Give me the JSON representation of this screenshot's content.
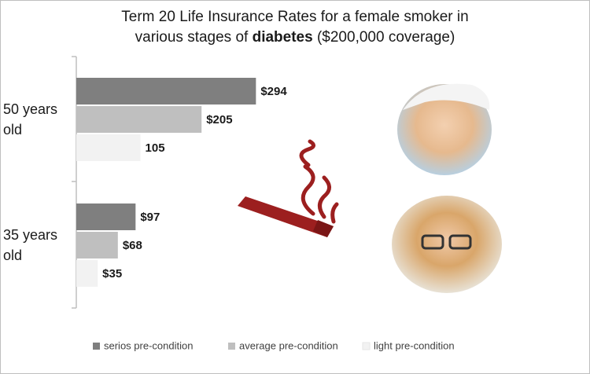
{
  "chart_data": {
    "type": "hbar",
    "title": [
      "Term 20 Life Insurance Rates for a female smoker in",
      "various stages of",
      "diabetes",
      "($200,000 coverage)"
    ],
    "categories": [
      "50 years old",
      "35 years old"
    ],
    "series": [
      {
        "name": "serios pre-condition",
        "color": "#7f7f7f",
        "values": [
          294,
          97
        ],
        "value_labels": [
          "$294",
          "$97"
        ]
      },
      {
        "name": "average pre-condition",
        "color": "#bfbfbf",
        "values": [
          205,
          68
        ],
        "value_labels": [
          "$205",
          "$68"
        ]
      },
      {
        "name": "light pre-condition",
        "color": "#f2f2f2",
        "values": [
          105,
          35
        ],
        "value_labels": [
          "105",
          "$35"
        ]
      }
    ],
    "xlim": [
      0,
      300
    ],
    "legend": "bottom"
  }
}
